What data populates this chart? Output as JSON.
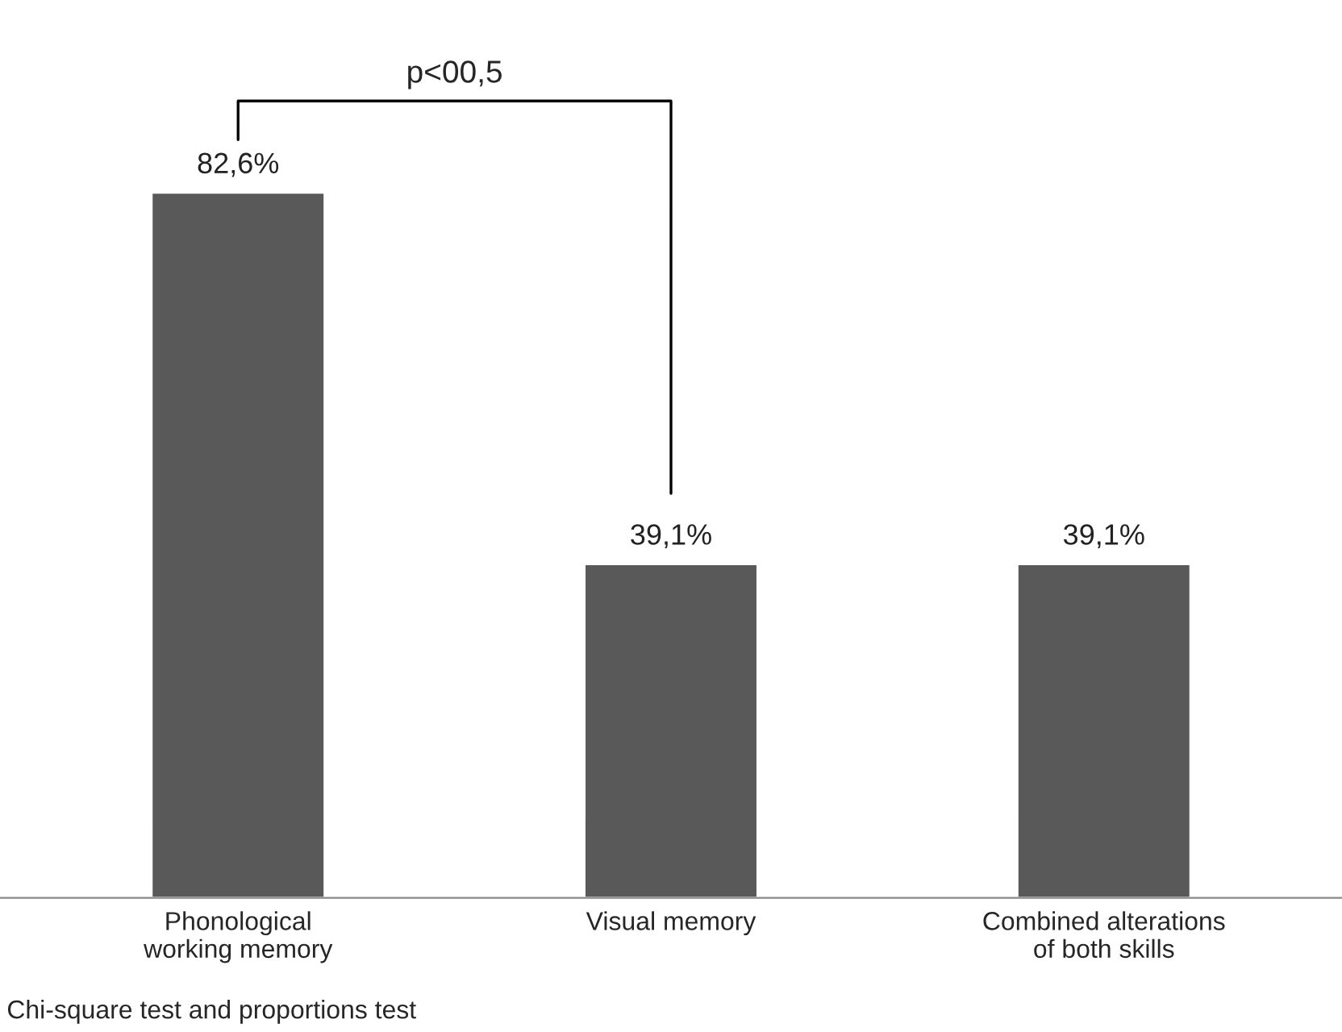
{
  "chart_data": {
    "type": "bar",
    "categories": [
      "Phonological\nworking memory",
      "Visual memory",
      "Combined alterations\nof both skills"
    ],
    "values": [
      82.6,
      39.1,
      39.1
    ],
    "value_labels": [
      "82,6%",
      "39,1%",
      "39,1%"
    ],
    "color": "#595959",
    "annotations": [
      "p<00,5",
      "Chi-square test and proportions test"
    ],
    "grid": false,
    "legend": false
  }
}
